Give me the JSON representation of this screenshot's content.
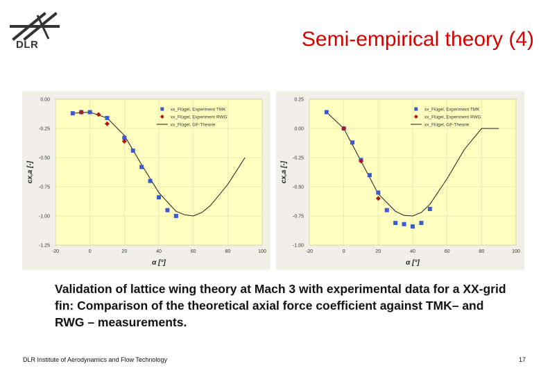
{
  "logo": {
    "text": "DLR",
    "icon": "dlr-logo-icon"
  },
  "title": "Semi-empirical theory (4)",
  "caption": "Validation of lattice wing theory at Mach 3 with experimental data for a XX-grid fin: Comparison of the theoretical axial force coefficient against TMK– and RWG – measurements.",
  "footer": "DLR Institute of Aerodynamics and Flow Technology",
  "page_number": "17",
  "colors": {
    "title": "#d40000",
    "plot_bg": "#ffffc0",
    "panel_bg": "#f0f0e8",
    "tmk": "#3a5bd0",
    "rwg": "#b01818",
    "line": "#1a1a1a",
    "grid": "#e5e5b0"
  },
  "chart_data": [
    {
      "type": "scatter",
      "xlabel": "α [°]",
      "ylabel": "cx,a [-]",
      "xlim": [
        -20,
        100
      ],
      "ylim": [
        -1.25,
        0.0
      ],
      "xticks": [
        "-20",
        "0",
        "20",
        "40",
        "60",
        "80",
        "100"
      ],
      "yticks": [
        "0.00",
        "-0.25",
        "-0.50",
        "-0.75",
        "-1.00",
        "-1.25"
      ],
      "grid": true,
      "legend_position": "top-right",
      "series": [
        {
          "name": "xx_Flügel, Experiment TMK",
          "kind": "square",
          "x": [
            -10,
            -5,
            0,
            10,
            20,
            25,
            30,
            35,
            40,
            45,
            50
          ],
          "y": [
            -0.12,
            -0.11,
            -0.11,
            -0.16,
            -0.33,
            -0.44,
            -0.58,
            -0.7,
            -0.84,
            -0.95,
            -1.0
          ]
        },
        {
          "name": "xx_Flügel, Experiment RWG",
          "kind": "diamond",
          "x": [
            -5,
            5,
            10,
            20
          ],
          "y": [
            -0.11,
            -0.13,
            -0.21,
            -0.36
          ]
        },
        {
          "name": "xx_Flügel, GF-Theorie",
          "kind": "line",
          "x": [
            -10,
            0,
            10,
            20,
            30,
            40,
            50,
            55,
            60,
            65,
            70,
            80,
            90
          ],
          "y": [
            -0.12,
            -0.11,
            -0.16,
            -0.31,
            -0.56,
            -0.8,
            -0.96,
            -0.99,
            -1.0,
            -0.97,
            -0.91,
            -0.73,
            -0.5
          ]
        }
      ]
    },
    {
      "type": "scatter",
      "xlabel": "α [°]",
      "ylabel": "cx,a [-]",
      "xlim": [
        -20,
        100
      ],
      "ylim": [
        -1.0,
        0.25
      ],
      "xticks": [
        "-20",
        "0",
        "20",
        "40",
        "60",
        "80",
        "100"
      ],
      "yticks": [
        "0.25",
        "0.00",
        "-0.25",
        "-0.50",
        "-0.75",
        "-1.00"
      ],
      "grid": true,
      "legend_position": "top-right",
      "series": [
        {
          "name": "xx_Flügel, Experiment TMK",
          "kind": "square",
          "x": [
            -10,
            0,
            5,
            10,
            15,
            20,
            25,
            30,
            35,
            40,
            45,
            50
          ],
          "y": [
            0.14,
            0.0,
            -0.12,
            -0.27,
            -0.4,
            -0.55,
            -0.7,
            -0.81,
            -0.82,
            -0.84,
            -0.81,
            -0.69
          ]
        },
        {
          "name": "xx_Flügel, Experiment RWG",
          "kind": "diamond",
          "x": [
            0,
            10,
            20
          ],
          "y": [
            0.0,
            -0.28,
            -0.6
          ]
        },
        {
          "name": "xx_Flügel, GF-Theorie",
          "kind": "line",
          "x": [
            -10,
            0,
            10,
            20,
            30,
            35,
            40,
            45,
            50,
            60,
            70,
            80,
            90
          ],
          "y": [
            0.14,
            0.0,
            -0.28,
            -0.56,
            -0.71,
            -0.745,
            -0.75,
            -0.72,
            -0.65,
            -0.43,
            -0.18,
            0.0,
            0.0
          ]
        }
      ]
    }
  ]
}
